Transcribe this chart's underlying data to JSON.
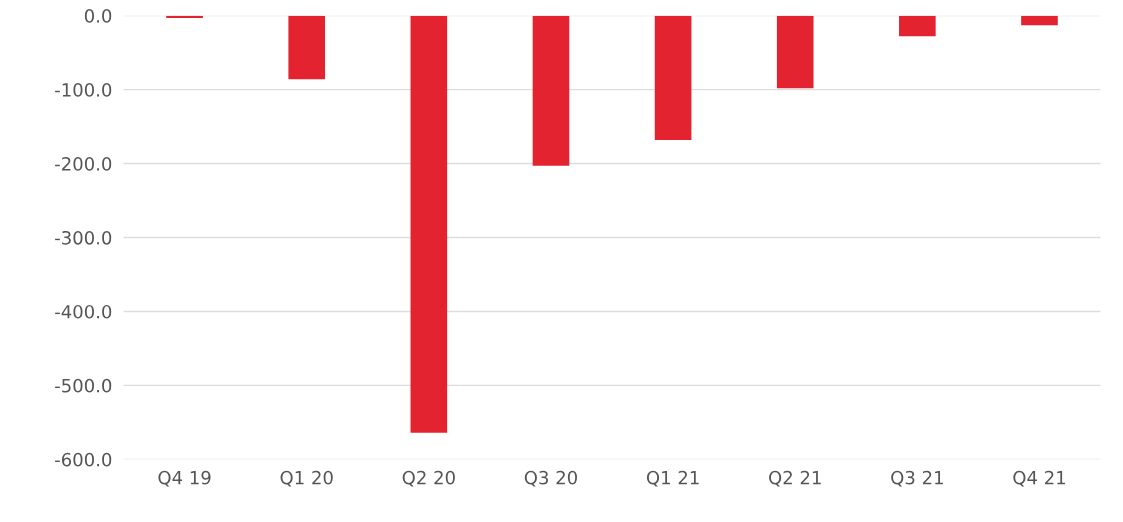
{
  "chart_data": {
    "type": "bar",
    "categories": [
      "Q4 19",
      "Q1 20",
      "Q2 20",
      "Q3 20",
      "Q1 21",
      "Q2 21",
      "Q3 21",
      "Q4 21"
    ],
    "values": [
      -3,
      -86,
      -564,
      -203,
      -168,
      -98,
      -28,
      -13
    ],
    "color": "#e42330",
    "ylim": [
      -600,
      0
    ],
    "yticks": [
      {
        "value": 0,
        "label": "0.0"
      },
      {
        "value": -100,
        "label": "-100.0"
      },
      {
        "value": -200,
        "label": "-200.0"
      },
      {
        "value": -300,
        "label": "-300.0"
      },
      {
        "value": -400,
        "label": "-400.0"
      },
      {
        "value": -500,
        "label": "-500.0"
      },
      {
        "value": -600,
        "label": "-600.0"
      }
    ],
    "grid": "y"
  }
}
